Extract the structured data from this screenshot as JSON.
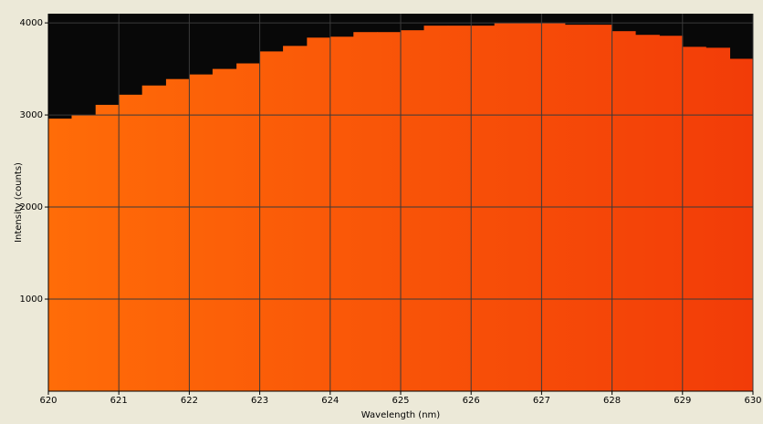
{
  "chart_data": {
    "type": "histogram",
    "x_label": "Wavelength (nm)",
    "y_label": "Intensity (counts)",
    "bins": [
      620,
      620.33,
      620.67,
      621,
      621.33,
      621.67,
      622,
      622.33,
      622.67,
      623,
      623.33,
      623.67,
      624,
      624.33,
      624.67,
      625,
      625.33,
      625.67,
      626,
      626.33,
      626.67,
      627,
      627.33,
      627.67,
      628,
      628.33,
      628.67,
      629,
      629.33,
      629.67,
      630
    ],
    "values": [
      2960,
      3000,
      3110,
      3220,
      3320,
      3390,
      3440,
      3500,
      3560,
      3690,
      3750,
      3840,
      3850,
      3900,
      3900,
      3920,
      3970,
      3970,
      3970,
      4000,
      4000,
      4000,
      3980,
      3980,
      3910,
      3870,
      3860,
      3740,
      3730,
      3610
    ],
    "colors": [
      "#ff6c08",
      "#f23c08"
    ],
    "background": "#080808",
    "xlim": [
      620,
      630
    ],
    "ylim": [
      0,
      4100
    ],
    "xticks": [
      620,
      621,
      622,
      623,
      624,
      625,
      626,
      627,
      628,
      629,
      630
    ],
    "yticks": [
      1000,
      2000,
      3000,
      4000
    ],
    "grid": true
  }
}
